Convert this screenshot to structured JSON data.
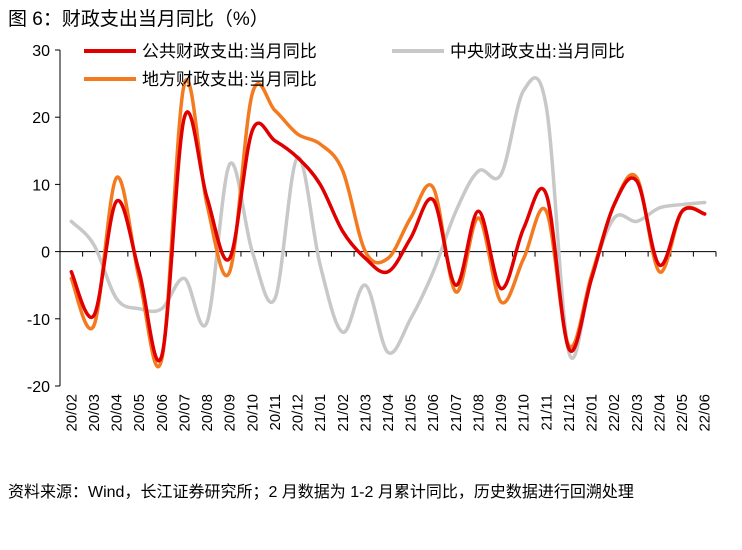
{
  "title": "图 6：财政支出当月同比（%）",
  "source_note": "资料来源：Wind，长江证券研究所；2 月数据为 1-2 月累计同比，历史数据进行回溯处理",
  "chart_data": {
    "type": "line",
    "title": "财政支出当月同比（%）",
    "xlabel": "",
    "ylabel": "",
    "ylim": [
      -20,
      30
    ],
    "yticks": [
      -20,
      -10,
      0,
      10,
      20,
      30
    ],
    "grid": false,
    "legend_position": "top",
    "categories": [
      "20/02",
      "20/03",
      "20/04",
      "20/05",
      "20/06",
      "20/07",
      "20/08",
      "20/09",
      "20/10",
      "20/11",
      "20/12",
      "21/01",
      "21/02",
      "21/03",
      "21/04",
      "21/05",
      "21/06",
      "21/07",
      "21/08",
      "21/09",
      "21/10",
      "21/11",
      "21/12",
      "22/01",
      "22/02",
      "22/03",
      "22/04",
      "22/05",
      "22/06"
    ],
    "series": [
      {
        "name": "公共财政支出:当月同比",
        "color": "#e00000",
        "values": [
          -3,
          -9.5,
          7.5,
          -3,
          -15.5,
          20,
          8,
          -1,
          18,
          16.5,
          14,
          10,
          3,
          -1,
          -3,
          2,
          7.7,
          -5,
          6,
          -5.5,
          3.5,
          8.5,
          -14.5,
          -4,
          7,
          10.5,
          -2,
          6,
          5.6
        ]
      },
      {
        "name": "中央财政支出:当月同比",
        "color": "#c8c8c8",
        "values": [
          4.5,
          1,
          -7,
          -8.5,
          -8.5,
          -4,
          -10.5,
          13,
          0,
          -7,
          14,
          -2,
          -12,
          -5,
          -15,
          -10,
          -3,
          6,
          12,
          11.5,
          24,
          21.5,
          -15,
          -3.5,
          5,
          4.5,
          6.5,
          7,
          7.3
        ]
      },
      {
        "name": "地方财政支出:当月同比",
        "color": "#f47a20",
        "values": [
          -4,
          -11,
          11,
          -4,
          -16,
          25,
          7,
          -3,
          23.5,
          21,
          17.5,
          16,
          12,
          0,
          -1,
          5,
          9.5,
          -6,
          5,
          -7.5,
          -1,
          6,
          -14,
          -3.5,
          7,
          11,
          -3,
          6,
          5.6
        ]
      }
    ]
  }
}
